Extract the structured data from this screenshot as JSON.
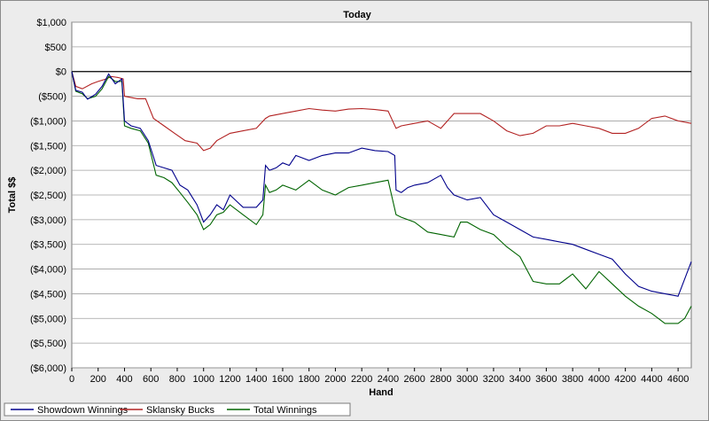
{
  "chart_data": {
    "type": "line",
    "title": "Today",
    "xlabel": "Hand",
    "ylabel": "Total $$",
    "xlim": [
      0,
      4700
    ],
    "ylim": [
      -6000,
      1000
    ],
    "grid": true,
    "legend_position": "bottom",
    "x_ticks": [
      0,
      200,
      400,
      600,
      800,
      1000,
      1200,
      1400,
      1600,
      1800,
      2000,
      2200,
      2400,
      2600,
      2800,
      3000,
      3200,
      3400,
      3600,
      3800,
      4000,
      4200,
      4400,
      4600
    ],
    "x_tick_labels": [
      "0",
      "200",
      "400",
      "600",
      "800",
      "1000",
      "1200",
      "1400",
      "1600",
      "1800",
      "2000",
      "2200",
      "2400",
      "2600",
      "2800",
      "3000",
      "3200",
      "3400",
      "3600",
      "3800",
      "4000",
      "4200",
      "4400",
      "4600"
    ],
    "y_ticks": [
      1000,
      500,
      0,
      -500,
      -1000,
      -1500,
      -2000,
      -2500,
      -3000,
      -3500,
      -4000,
      -4500,
      -5000,
      -5500,
      -6000
    ],
    "y_tick_labels": [
      "$1,000",
      "$500",
      "$0",
      "($500)",
      "($1,000)",
      "($1,500)",
      "($2,000)",
      "($2,500)",
      "($3,000)",
      "($3,500)",
      "($4,000)",
      "($4,500)",
      "($5,000)",
      "($5,500)",
      "($6,000)"
    ],
    "series": [
      {
        "name": "Showdown Winnings",
        "color": "#00008b",
        "x": [
          0,
          30,
          80,
          120,
          180,
          230,
          280,
          330,
          380,
          400,
          450,
          520,
          580,
          640,
          700,
          760,
          820,
          880,
          950,
          1000,
          1050,
          1100,
          1150,
          1200,
          1300,
          1400,
          1450,
          1470,
          1500,
          1550,
          1600,
          1650,
          1700,
          1800,
          1900,
          2000,
          2100,
          2200,
          2300,
          2400,
          2450,
          2460,
          2500,
          2550,
          2600,
          2700,
          2800,
          2850,
          2900,
          3000,
          3100,
          3200,
          3300,
          3400,
          3500,
          3600,
          3700,
          3800,
          3900,
          4000,
          4100,
          4200,
          4300,
          4400,
          4500,
          4600,
          4650,
          4700
        ],
        "y": [
          0,
          -380,
          -420,
          -560,
          -460,
          -300,
          -50,
          -250,
          -150,
          -1000,
          -1100,
          -1150,
          -1400,
          -1900,
          -1950,
          -2000,
          -2300,
          -2400,
          -2700,
          -3050,
          -2900,
          -2700,
          -2800,
          -2500,
          -2750,
          -2750,
          -2600,
          -1900,
          -2000,
          -1950,
          -1850,
          -1900,
          -1700,
          -1800,
          -1700,
          -1650,
          -1650,
          -1550,
          -1600,
          -1620,
          -1700,
          -2400,
          -2450,
          -2350,
          -2300,
          -2250,
          -2100,
          -2350,
          -2500,
          -2600,
          -2550,
          -2900,
          -3050,
          -3200,
          -3350,
          -3400,
          -3450,
          -3500,
          -3600,
          -3700,
          -3800,
          -4100,
          -4350,
          -4450,
          -4500,
          -4550,
          -4200,
          -3850
        ]
      },
      {
        "name": "Sklansky Bucks",
        "color": "#b22222",
        "x": [
          0,
          30,
          80,
          150,
          200,
          260,
          300,
          350,
          390,
          400,
          500,
          560,
          620,
          700,
          780,
          860,
          950,
          1000,
          1050,
          1100,
          1200,
          1300,
          1400,
          1470,
          1500,
          1600,
          1700,
          1800,
          1900,
          2000,
          2100,
          2200,
          2300,
          2400,
          2460,
          2500,
          2600,
          2700,
          2800,
          2900,
          3000,
          3100,
          3200,
          3300,
          3400,
          3500,
          3600,
          3700,
          3800,
          3900,
          4000,
          4100,
          4200,
          4300,
          4400,
          4500,
          4600,
          4700
        ],
        "y": [
          0,
          -300,
          -350,
          -250,
          -200,
          -150,
          -100,
          -120,
          -150,
          -500,
          -550,
          -550,
          -950,
          -1100,
          -1250,
          -1400,
          -1450,
          -1600,
          -1550,
          -1400,
          -1250,
          -1200,
          -1150,
          -950,
          -900,
          -850,
          -800,
          -750,
          -780,
          -800,
          -760,
          -750,
          -770,
          -800,
          -1150,
          -1100,
          -1050,
          -1000,
          -1150,
          -850,
          -850,
          -850,
          -1000,
          -1200,
          -1300,
          -1250,
          -1100,
          -1100,
          -1050,
          -1100,
          -1150,
          -1250,
          -1250,
          -1150,
          -950,
          -900,
          -1000,
          -1050
        ]
      },
      {
        "name": "Total Winnings",
        "color": "#006400",
        "x": [
          0,
          30,
          80,
          120,
          180,
          230,
          280,
          330,
          380,
          400,
          450,
          520,
          580,
          640,
          700,
          760,
          820,
          880,
          950,
          1000,
          1050,
          1100,
          1150,
          1200,
          1300,
          1400,
          1450,
          1470,
          1500,
          1550,
          1600,
          1700,
          1800,
          1900,
          2000,
          2100,
          2200,
          2300,
          2400,
          2460,
          2500,
          2600,
          2700,
          2800,
          2900,
          2950,
          3000,
          3100,
          3200,
          3300,
          3400,
          3450,
          3500,
          3600,
          3700,
          3800,
          3900,
          4000,
          4100,
          4200,
          4300,
          4400,
          4500,
          4600,
          4650,
          4700
        ],
        "y": [
          0,
          -400,
          -450,
          -550,
          -500,
          -350,
          -100,
          -200,
          -200,
          -1100,
          -1150,
          -1200,
          -1450,
          -2100,
          -2150,
          -2250,
          -2450,
          -2650,
          -2900,
          -3200,
          -3100,
          -2900,
          -2850,
          -2700,
          -2900,
          -3100,
          -2900,
          -2300,
          -2450,
          -2400,
          -2300,
          -2400,
          -2200,
          -2400,
          -2500,
          -2350,
          -2300,
          -2250,
          -2200,
          -2900,
          -2950,
          -3050,
          -3250,
          -3300,
          -3350,
          -3050,
          -3050,
          -3200,
          -3300,
          -3550,
          -3750,
          -4000,
          -4250,
          -4300,
          -4300,
          -4100,
          -4400,
          -4050,
          -4300,
          -4550,
          -4750,
          -4900,
          -5100,
          -5100,
          -5000,
          -4750
        ]
      }
    ]
  }
}
